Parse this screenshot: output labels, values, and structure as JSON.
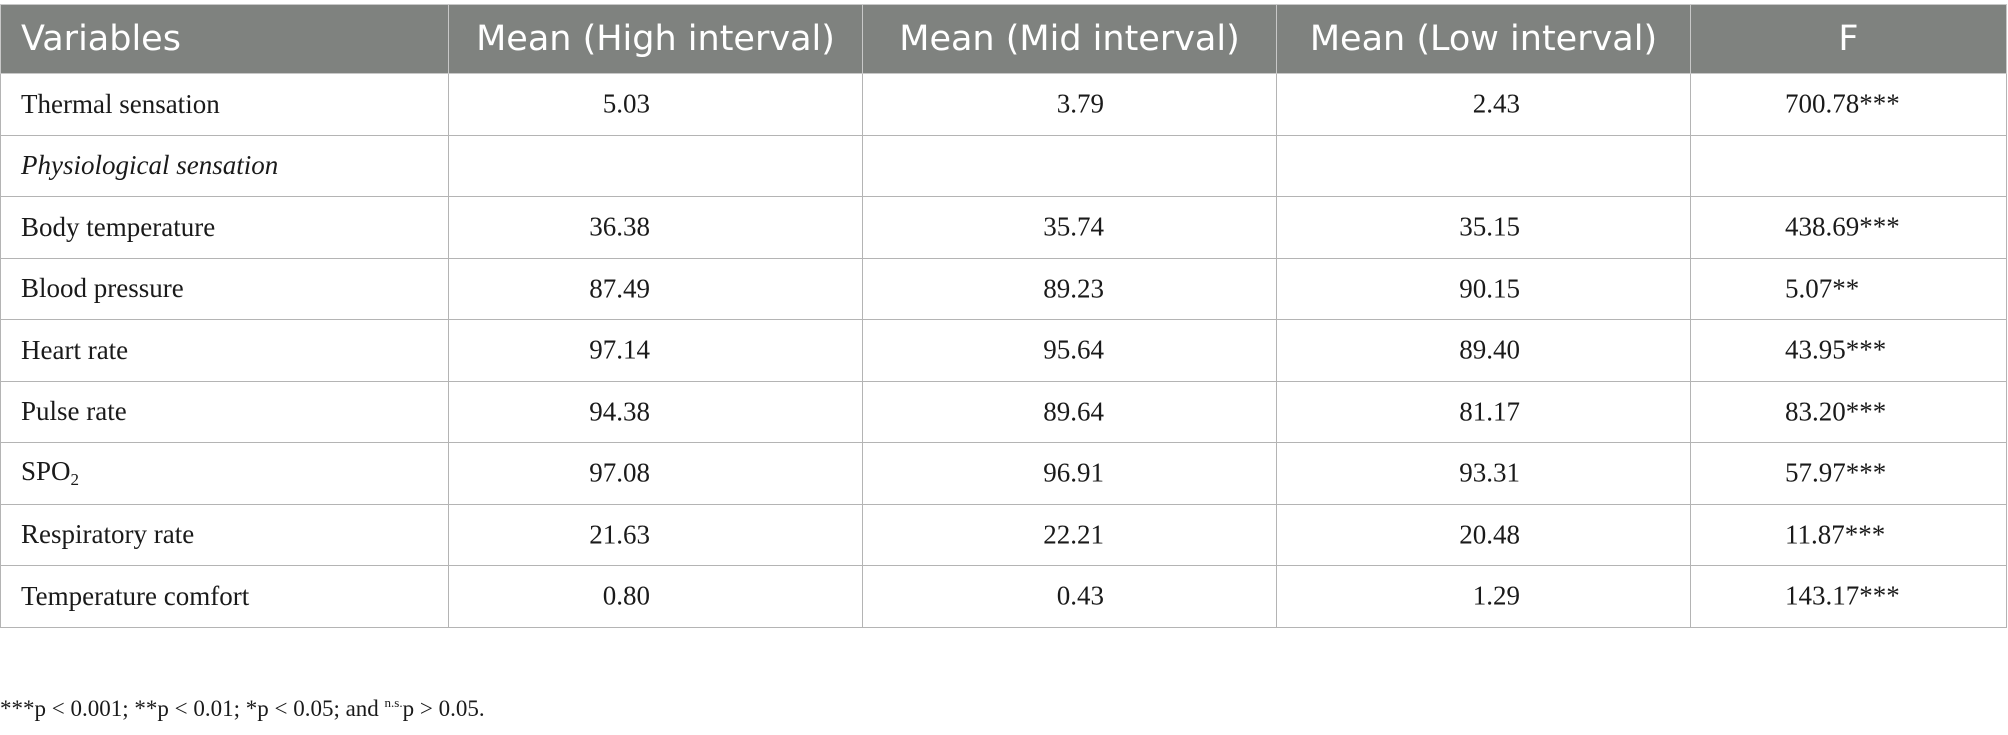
{
  "table": {
    "headers": [
      "Variables",
      "Mean (High interval)",
      "Mean (Mid interval)",
      "Mean (Low interval)",
      "F"
    ],
    "rows": [
      {
        "label": "Thermal sensation",
        "high": "5.03",
        "mid": "3.79",
        "low": "2.43",
        "f": "700.78***"
      },
      {
        "label": "Physiological sensation",
        "high": "",
        "mid": "",
        "low": "",
        "f": ""
      },
      {
        "label": "Body temperature",
        "high": "36.38",
        "mid": "35.74",
        "low": "35.15",
        "f": "438.69***"
      },
      {
        "label": "Blood pressure",
        "high": "87.49",
        "mid": "89.23",
        "low": "90.15",
        "f": "5.07**"
      },
      {
        "label": "Heart rate",
        "high": "97.14",
        "mid": "95.64",
        "low": "89.40",
        "f": "43.95***"
      },
      {
        "label": "Pulse rate",
        "high": "94.38",
        "mid": "89.64",
        "low": "81.17",
        "f": "83.20***"
      },
      {
        "label_main": "SPO",
        "label_sub": "2",
        "high": "97.08",
        "mid": "96.91",
        "low": "93.31",
        "f": "57.97***"
      },
      {
        "label": "Respiratory rate",
        "high": "21.63",
        "mid": "22.21",
        "low": "20.48",
        "f": "11.87***"
      },
      {
        "label": "Temperature comfort",
        "high": "0.80",
        "mid": "0.43",
        "low": "1.29",
        "f": "143.17***"
      }
    ]
  },
  "footnote": {
    "part1": "***p < 0.001; **p < 0.01; *p < 0.05; and ",
    "ns_sup": "n.s.",
    "part2": "p > 0.05."
  }
}
